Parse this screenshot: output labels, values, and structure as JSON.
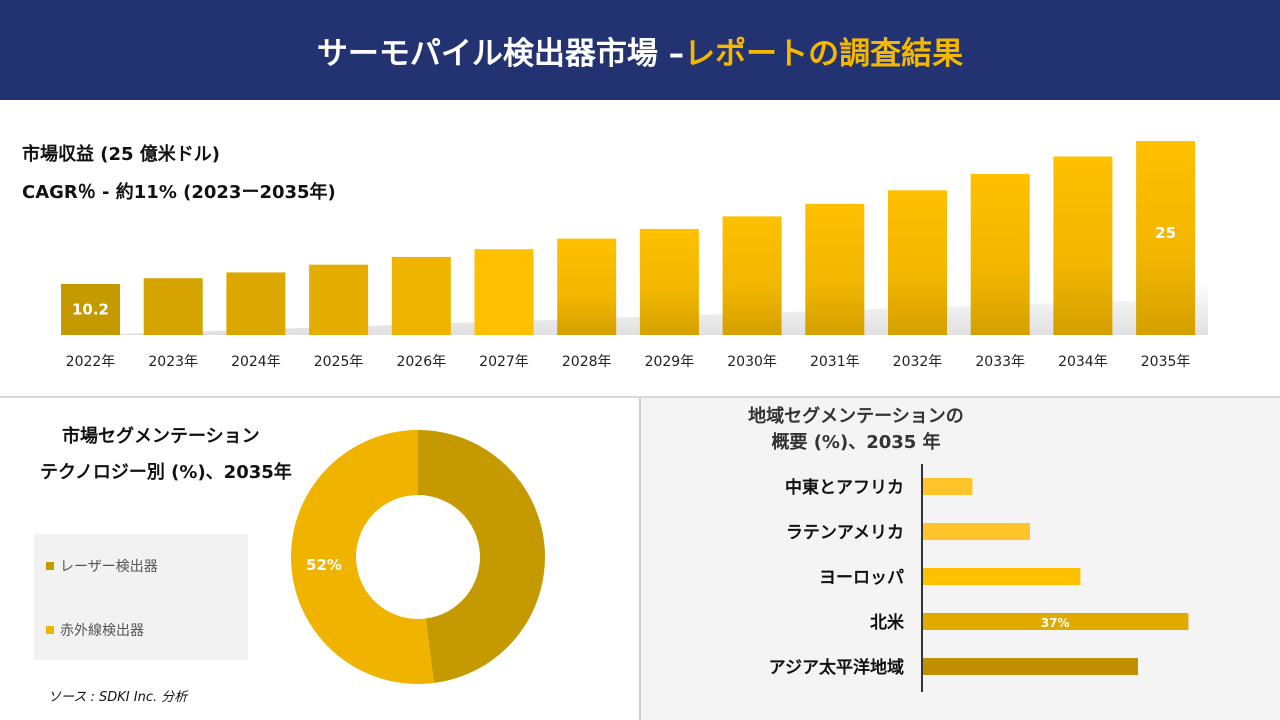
{
  "header": {
    "title_main": "サーモパイル検出器市場 –",
    "title_accent": "レポートの調査結果"
  },
  "revenue": {
    "title": "市場収益 (25 億米ドル)",
    "cagr": "CAGR％ - 約11% (2023ー2035年)"
  },
  "chart_data": [
    {
      "type": "bar",
      "categories": [
        "2022年",
        "2023年",
        "2024年",
        "2025年",
        "2026年",
        "2027年",
        "2028年",
        "2029年",
        "2030年",
        "2031年",
        "2032年",
        "2033年",
        "2034年",
        "2035年"
      ],
      "values": [
        10.2,
        10.8,
        11.4,
        12.2,
        13.0,
        13.8,
        14.9,
        15.9,
        17.2,
        18.5,
        19.9,
        21.6,
        23.4,
        25
      ],
      "data_labels": {
        "0": "10.2",
        "13": "25"
      },
      "title": "市場収益 (25 億米ドル)",
      "colors": [
        "#c49a00",
        "#d6a400",
        "#e0aa00",
        "#e8b000",
        "#f2b800",
        "#fec000"
      ]
    },
    {
      "type": "pie",
      "title": "市場セグメンテーション テクノロジー別 (%)、2035年",
      "labels": [
        "レーザー検出器",
        "赤外線検出器"
      ],
      "values": [
        48,
        52
      ],
      "data_labels": [
        "",
        "52%"
      ],
      "colors": [
        "#c49a00",
        "#f0b400"
      ]
    },
    {
      "type": "bar",
      "orientation": "horizontal",
      "title": "地域セグメンテーションの 概要 (%)、2035 年",
      "categories": [
        "中東とアフリカ",
        "ラテンアメリカ",
        "ヨーロッパ",
        "北米",
        "アジア太平洋地域"
      ],
      "values": [
        7,
        15,
        22,
        37,
        30
      ],
      "data_labels": [
        "",
        "",
        "",
        "37%",
        ""
      ],
      "colors": [
        "#ffc42a",
        "#ffc42a",
        "#ffc000",
        "#e0aa00",
        "#c09000"
      ]
    }
  ],
  "pie": {
    "title1": "市場セグメンテーション",
    "title2": "テクノロジー別 (%)、2035年",
    "legend": [
      "レーザー検出器",
      "赤外線検出器"
    ]
  },
  "region": {
    "title1": "地域セグメンテーションの",
    "title2": "概要 (%)、2035 年"
  },
  "source": "ソース : SDKI Inc. 分析"
}
